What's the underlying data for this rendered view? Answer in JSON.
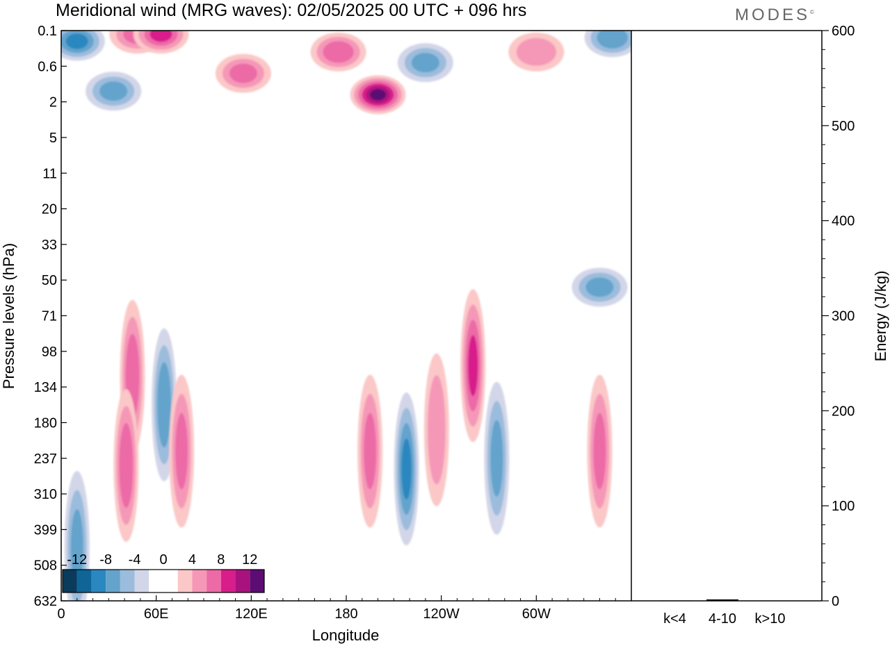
{
  "header": {
    "title": "Meridional wind (MRG waves):  02/05/2025  00 UTC  + 096 hrs",
    "brand": "MODES",
    "brand_mark": "©"
  },
  "chart_data": [
    {
      "type": "heatmap",
      "title": "Meridional wind (MRG waves):  02/05/2025  00 UTC  + 096 hrs",
      "xlabel": "Longitude",
      "ylabel": "Pressure levels (hPa)",
      "x_ticks": [
        "0",
        "60E",
        "120E",
        "180",
        "120W",
        "60W"
      ],
      "x_range_degrees": [
        0,
        360
      ],
      "y_ticks": [
        "0.1",
        "0.6",
        "2",
        "5",
        "11",
        "20",
        "33",
        "50",
        "71",
        "98",
        "134",
        "180",
        "237",
        "310",
        "399",
        "508",
        "632"
      ],
      "y_scale": "level index (top 0.1 hPa, bottom 632 hPa)",
      "colorbar": {
        "labels": [
          "-12",
          "-8",
          "-4",
          "0",
          "4",
          "8",
          "12"
        ],
        "colors": [
          "#0b3b5c",
          "#0e6596",
          "#2b87bf",
          "#64a3cc",
          "#9bbcdc",
          "#d2d6e8",
          "#ffffff",
          "#ffffff",
          "#fbc7c7",
          "#f598b8",
          "#ec6aa6",
          "#d81e8b",
          "#a8127e",
          "#5c0c73"
        ]
      },
      "features": [
        {
          "lon": 10,
          "level": 0.3,
          "value": -8
        },
        {
          "lon": 33,
          "level": 1.7,
          "value": -6
        },
        {
          "lon": 48,
          "level": 0.1,
          "value": 6
        },
        {
          "lon": 63,
          "level": 0.1,
          "value": 8
        },
        {
          "lon": 115,
          "level": 1.2,
          "value": 6
        },
        {
          "lon": 175,
          "level": 0.6,
          "value": 7
        },
        {
          "lon": 200,
          "level": 1.8,
          "value": 12
        },
        {
          "lon": 230,
          "level": 0.9,
          "value": -6
        },
        {
          "lon": 300,
          "level": 0.6,
          "value": 5
        },
        {
          "lon": 348,
          "level": 0.2,
          "value": -7
        },
        {
          "lon": 45,
          "level": 9.7,
          "value": 7
        },
        {
          "lon": 41,
          "level": 12.2,
          "value": 7
        },
        {
          "lon": 65,
          "level": 10.5,
          "value": -7
        },
        {
          "lon": 76,
          "level": 11.8,
          "value": 6
        },
        {
          "lon": 195,
          "level": 11.8,
          "value": 6
        },
        {
          "lon": 218,
          "level": 12.3,
          "value": -8
        },
        {
          "lon": 237,
          "level": 11.2,
          "value": 5
        },
        {
          "lon": 260,
          "level": 9.4,
          "value": 8
        },
        {
          "lon": 275,
          "level": 12.0,
          "value": -6
        },
        {
          "lon": 340,
          "level": 11.8,
          "value": 6
        },
        {
          "lon": 340,
          "level": 7.2,
          "value": -6
        },
        {
          "lon": 10,
          "level": 14.5,
          "value": -6
        }
      ]
    },
    {
      "type": "bar",
      "ylabel": "Energy (J/kg)",
      "ylim": [
        0,
        600
      ],
      "y_ticks": [
        "0",
        "100",
        "200",
        "300",
        "400",
        "500",
        "600"
      ],
      "categories": [
        "k<4",
        "4-10",
        "k>10"
      ],
      "values": [
        0.4,
        1.5,
        0.2
      ]
    }
  ]
}
